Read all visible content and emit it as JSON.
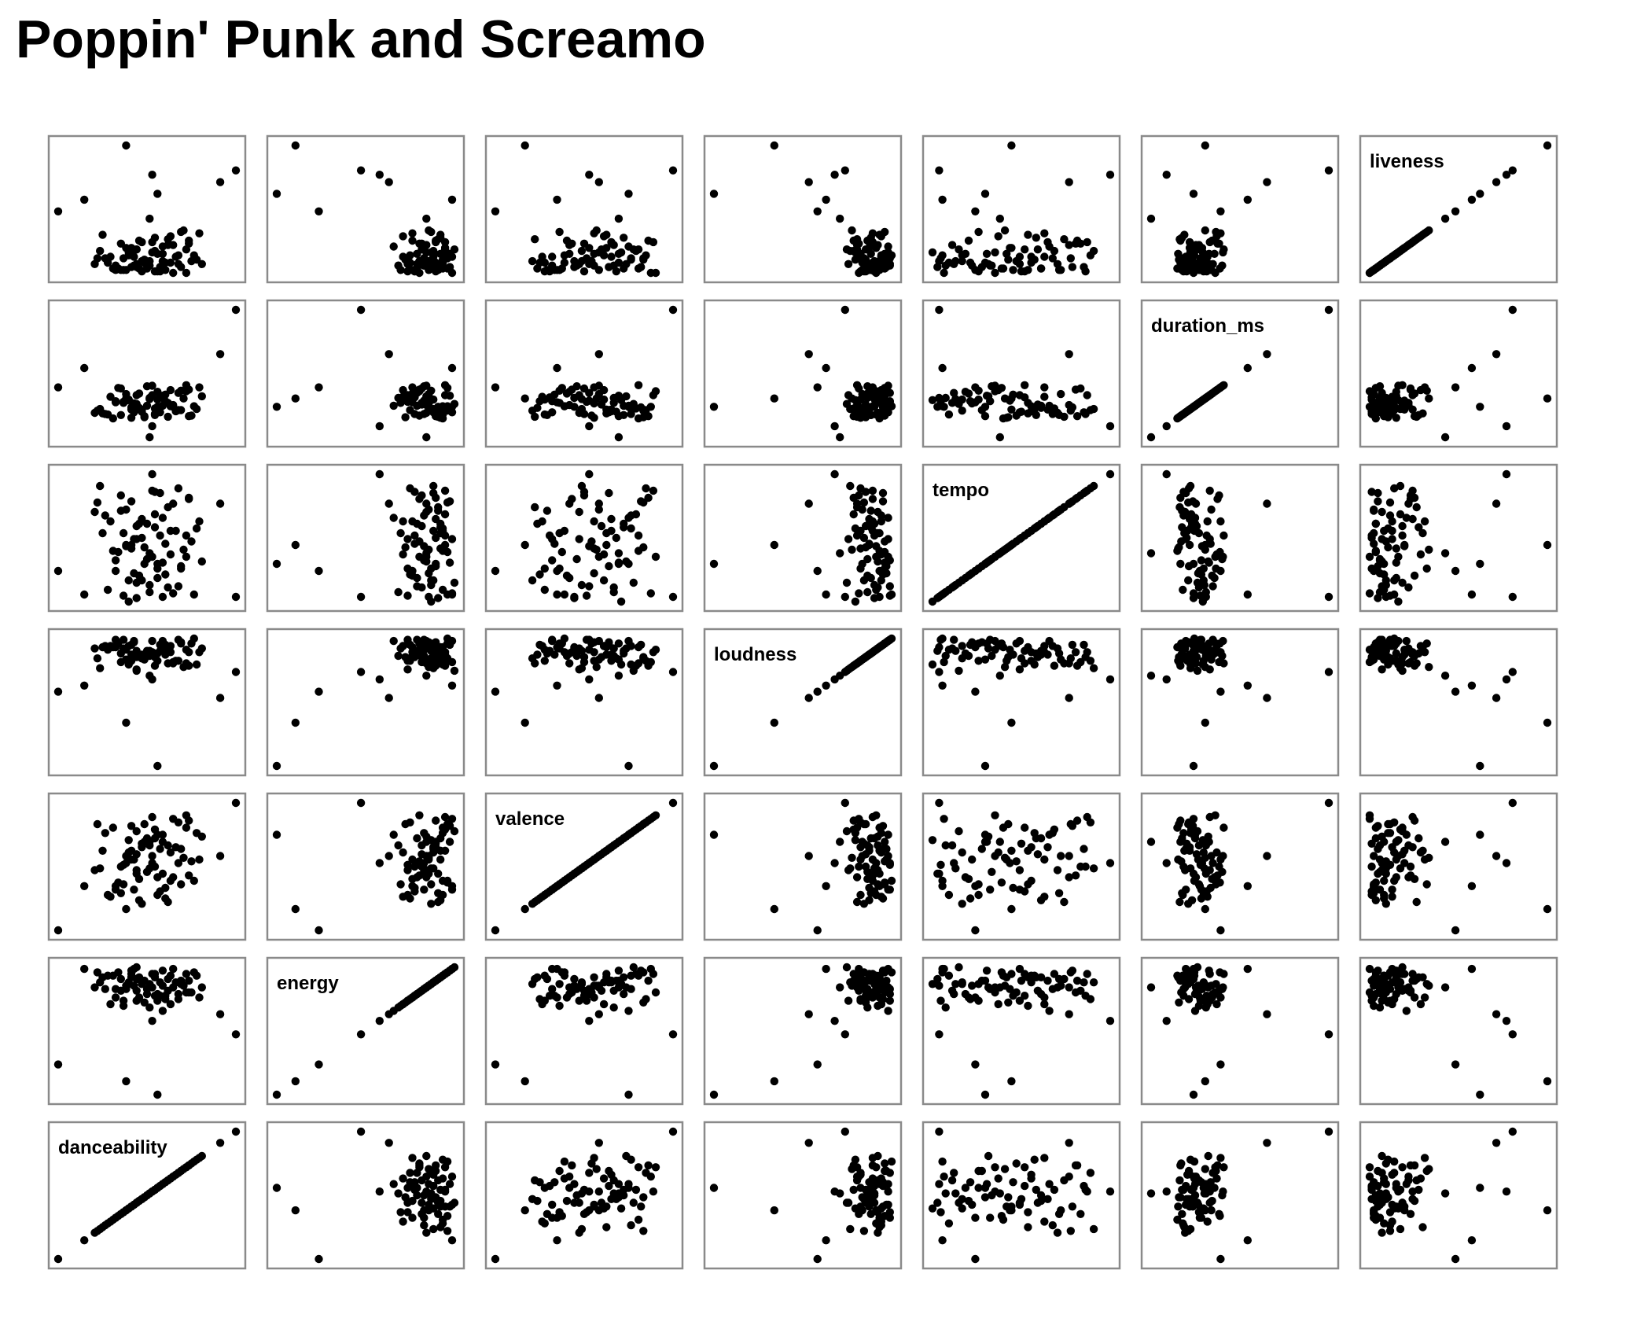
{
  "title": "Poppin' Punk and Screamo",
  "chart_data": {
    "type": "scatter",
    "title": "Poppin' Punk and Screamo",
    "variables": [
      "danceability",
      "energy",
      "valence",
      "loudness",
      "tempo",
      "duration_ms",
      "liveness"
    ],
    "grid": false,
    "legend": "none",
    "point_color": "#000000",
    "frame_color": "#8a8a8a",
    "data": {
      "danceability": [
        0.5,
        0.38,
        0.58,
        0.48,
        0.66,
        0.7,
        0.45,
        0.6,
        0.52,
        0.74,
        0.41,
        0.64,
        0.55,
        0.49,
        0.69,
        0.36,
        0.61,
        0.57,
        0.46,
        0.72,
        0.53,
        0.44,
        0.67,
        0.59,
        0.5,
        0.34,
        0.63,
        0.51,
        0.47,
        0.71,
        0.56,
        0.42,
        0.65,
        0.54,
        0.6,
        0.39,
        0.68,
        0.48,
        0.58,
        0.52,
        0.45,
        0.62,
        0.75,
        0.5,
        0.43,
        0.66,
        0.55,
        0.37,
        0.61,
        0.57,
        0.49,
        0.7,
        0.53,
        0.4,
        0.64,
        0.46,
        0.59,
        0.51,
        0.73,
        0.56,
        0.44,
        0.62,
        0.5,
        0.35,
        0.67,
        0.54,
        0.48,
        0.6,
        0.52,
        0.42,
        0.69,
        0.57,
        0.47,
        0.63,
        0.55,
        0.3,
        0.82,
        0.2,
        0.56,
        0.88,
        0.46,
        0.58
      ],
      "energy": [
        0.91,
        0.85,
        0.78,
        0.94,
        0.82,
        0.9,
        0.75,
        0.96,
        0.88,
        0.8,
        0.93,
        0.86,
        0.74,
        0.97,
        0.83,
        0.89,
        0.79,
        0.92,
        0.87,
        0.95,
        0.77,
        0.84,
        0.9,
        0.81,
        0.98,
        0.86,
        0.76,
        0.92,
        0.88,
        0.83,
        0.94,
        0.8,
        0.89,
        0.85,
        0.72,
        0.93,
        0.87,
        0.96,
        0.82,
        0.9,
        0.78,
        0.91,
        0.86,
        0.84,
        0.95,
        0.79,
        0.88,
        0.92,
        0.81,
        0.94,
        0.87,
        0.83,
        0.9,
        0.76,
        0.97,
        0.85,
        0.89,
        0.8,
        0.93,
        0.86,
        0.91,
        0.84,
        0.78,
        0.95,
        0.88,
        0.82,
        0.92,
        0.87,
        0.9,
        0.85,
        0.94,
        0.81,
        0.89,
        0.93,
        0.86,
        0.97,
        0.7,
        0.4,
        0.66,
        0.58,
        0.3,
        0.22
      ],
      "valence": [
        0.42,
        0.65,
        0.3,
        0.55,
        0.48,
        0.72,
        0.36,
        0.6,
        0.25,
        0.5,
        0.68,
        0.4,
        0.58,
        0.33,
        0.75,
        0.45,
        0.28,
        0.62,
        0.52,
        0.38,
        0.7,
        0.46,
        0.56,
        0.32,
        0.66,
        0.44,
        0.54,
        0.27,
        0.61,
        0.49,
        0.74,
        0.35,
        0.57,
        0.43,
        0.64,
        0.3,
        0.51,
        0.69,
        0.4,
        0.59,
        0.47,
        0.26,
        0.63,
        0.53,
        0.37,
        0.71,
        0.45,
        0.55,
        0.34,
        0.67,
        0.5,
        0.41,
        0.6,
        0.29,
        0.73,
        0.48,
        0.56,
        0.39,
        0.65,
        0.52,
        0.31,
        0.58,
        0.44,
        0.7,
        0.36,
        0.62,
        0.5,
        0.42,
        0.57,
        0.33,
        0.68,
        0.46,
        0.54,
        0.38,
        0.6,
        0.35,
        0.52,
        0.1,
        0.48,
        0.82,
        0.22,
        0.64
      ],
      "loudness": [
        -5.2,
        -4.8,
        -6.0,
        -5.5,
        -4.3,
        -6.4,
        -5.0,
        -4.6,
        -5.8,
        -5.3,
        -4.9,
        -6.2,
        -5.6,
        -4.4,
        -5.1,
        -6.6,
        -4.7,
        -5.4,
        -5.9,
        -4.2,
        -5.7,
        -6.1,
        -4.5,
        -5.2,
        -6.8,
        -5.0,
        -4.8,
        -5.5,
        -6.3,
        -4.6,
        -5.3,
        -4.9,
        -6.0,
        -5.6,
        -4.4,
        -5.1,
        -6.5,
        -4.7,
        -5.4,
        -5.8,
        -4.3,
        -6.2,
        -5.0,
        -5.7,
        -4.6,
        -6.0,
        -5.2,
        -4.9,
        -5.5,
        -6.4,
        -4.5,
        -5.3,
        -5.9,
        -4.8,
        -6.1,
        -5.1,
        -4.7,
        -5.6,
        -6.3,
        -4.4,
        -5.4,
        -5.0,
        -6.7,
        -5.8,
        -4.6,
        -5.2,
        -6.0,
        -4.9,
        -5.5,
        -4.3,
        -6.2,
        -5.7,
        -4.8,
        -5.3,
        -7.2,
        -8.0,
        -9.0,
        -8.5,
        -7.5,
        -6.9,
        -11.0,
        -14.5
      ],
      "tempo": [
        95,
        165,
        120,
        140,
        105,
        180,
        150,
        125,
        110,
        160,
        135,
        175,
        100,
        145,
        130,
        190,
        115,
        155,
        170,
        98,
        138,
        182,
        122,
        148,
        108,
        168,
        132,
        158,
        92,
        143,
        186,
        118,
        152,
        128,
        163,
        102,
        136,
        177,
        112,
        146,
        97,
        172,
        126,
        156,
        134,
        188,
        106,
        150,
        141,
        166,
        116,
        179,
        124,
        160,
        99,
        139,
        184,
        114,
        154,
        130,
        169,
        104,
        145,
        176,
        120,
        158,
        137,
        96,
        162,
        127,
        148,
        185,
        110,
        152,
        133,
        98,
        175,
        118,
        200,
        96,
        140,
        124
      ],
      "duration_ms": [
        205000,
        192000,
        218000,
        200000,
        230000,
        188000,
        212000,
        225000,
        198000,
        240000,
        184000,
        208000,
        221000,
        195000,
        233000,
        201000,
        215000,
        190000,
        228000,
        206000,
        186000,
        238000,
        199000,
        222000,
        210000,
        194000,
        235000,
        203000,
        217000,
        189000,
        226000,
        213000,
        197000,
        242000,
        207000,
        191000,
        220000,
        204000,
        232000,
        196000,
        214000,
        187000,
        224000,
        209000,
        239000,
        199000,
        219000,
        193000,
        227000,
        202000,
        211000,
        236000,
        188000,
        223000,
        205000,
        216000,
        195000,
        229000,
        201000,
        243000,
        190000,
        212000,
        226000,
        198000,
        234000,
        207000,
        185000,
        221000,
        200000,
        215000,
        244000,
        192000,
        218000,
        206000,
        150000,
        275000,
        300000,
        240000,
        170000,
        380000,
        220000,
        205000
      ],
      "liveness": [
        0.12,
        0.18,
        0.09,
        0.25,
        0.14,
        0.3,
        0.1,
        0.21,
        0.16,
        0.35,
        0.11,
        0.27,
        0.13,
        0.19,
        0.08,
        0.23,
        0.15,
        0.32,
        0.1,
        0.2,
        0.17,
        0.28,
        0.12,
        0.09,
        0.24,
        0.14,
        0.33,
        0.11,
        0.22,
        0.16,
        0.29,
        0.1,
        0.19,
        0.13,
        0.26,
        0.15,
        0.37,
        0.12,
        0.21,
        0.09,
        0.18,
        0.31,
        0.14,
        0.24,
        0.11,
        0.2,
        0.16,
        0.34,
        0.1,
        0.23,
        0.13,
        0.28,
        0.15,
        0.19,
        0.08,
        0.25,
        0.12,
        0.3,
        0.17,
        0.22,
        0.1,
        0.27,
        0.14,
        0.18,
        0.36,
        0.11,
        0.21,
        0.16,
        0.29,
        0.13,
        0.24,
        0.09,
        0.2,
        0.15,
        0.45,
        0.58,
        0.7,
        0.5,
        0.75,
        0.78,
        0.95,
        0.62
      ]
    }
  }
}
